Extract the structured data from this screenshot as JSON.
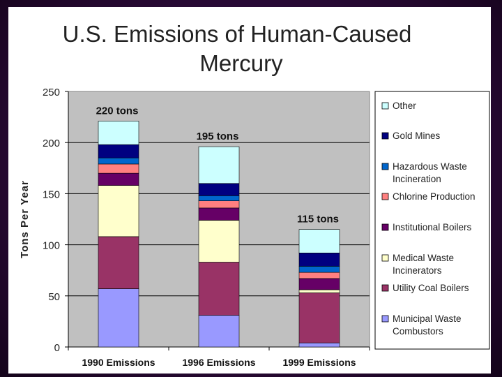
{
  "page": {
    "title_line1": "U.S. Emissions of Human-Caused",
    "title_line2": "Mercury"
  },
  "chart_data": {
    "type": "bar",
    "stacked": true,
    "title": "U.S. Emissions of Human-Caused Mercury",
    "xlabel": "",
    "ylabel": "Tons Per Year",
    "ylim": [
      0,
      250
    ],
    "yticks": [
      0,
      50,
      100,
      150,
      200,
      250
    ],
    "grid": true,
    "legend_position": "right",
    "categories": [
      "1990 Emissions",
      "1996 Emissions",
      "1999 Emissions"
    ],
    "totals_labels": [
      "220 tons",
      "195 tons",
      "115 tons"
    ],
    "series": [
      {
        "name": "Municipal Waste Combustors",
        "color": "#9999ff",
        "values": [
          57,
          31,
          4
        ]
      },
      {
        "name": "Utility Coal Boilers",
        "color": "#993366",
        "values": [
          51,
          52,
          49
        ]
      },
      {
        "name": "Medical Waste Incinerators",
        "color": "#ffffcc",
        "values": [
          50,
          41,
          3
        ]
      },
      {
        "name": "Institutional Boilers",
        "color": "#660066",
        "values": [
          12,
          12,
          11
        ]
      },
      {
        "name": "Chlorine Production",
        "color": "#ff8080",
        "values": [
          9,
          7,
          6
        ]
      },
      {
        "name": "Hazardous Waste Incineration",
        "color": "#0066cc",
        "values": [
          6,
          5,
          6
        ]
      },
      {
        "name": "Gold Mines",
        "color": "#000080",
        "values": [
          13,
          12,
          13
        ]
      },
      {
        "name": "Other",
        "color": "#ccffff",
        "values": [
          23,
          36,
          23
        ]
      }
    ],
    "legend_order": [
      "Other",
      "Gold Mines",
      "Hazardous Waste Incineration",
      "Chlorine Production",
      "Institutional Boilers",
      "Medical Waste Incinerators",
      "Utility Coal Boilers",
      "Municipal Waste Combustors"
    ],
    "legend_lines": {
      "Other": [
        "Other"
      ],
      "Gold Mines": [
        "Gold Mines"
      ],
      "Hazardous Waste Incineration": [
        "Hazardous Waste",
        "Incineration"
      ],
      "Chlorine Production": [
        "Chlorine Production"
      ],
      "Institutional Boilers": [
        "Institutional Boilers"
      ],
      "Medical Waste Incinerators": [
        "Medical Waste",
        "Incinerators"
      ],
      "Utility Coal Boilers": [
        "Utility Coal Boilers"
      ],
      "Municipal Waste Combustors": [
        "Municipal Waste",
        "Combustors"
      ]
    }
  }
}
